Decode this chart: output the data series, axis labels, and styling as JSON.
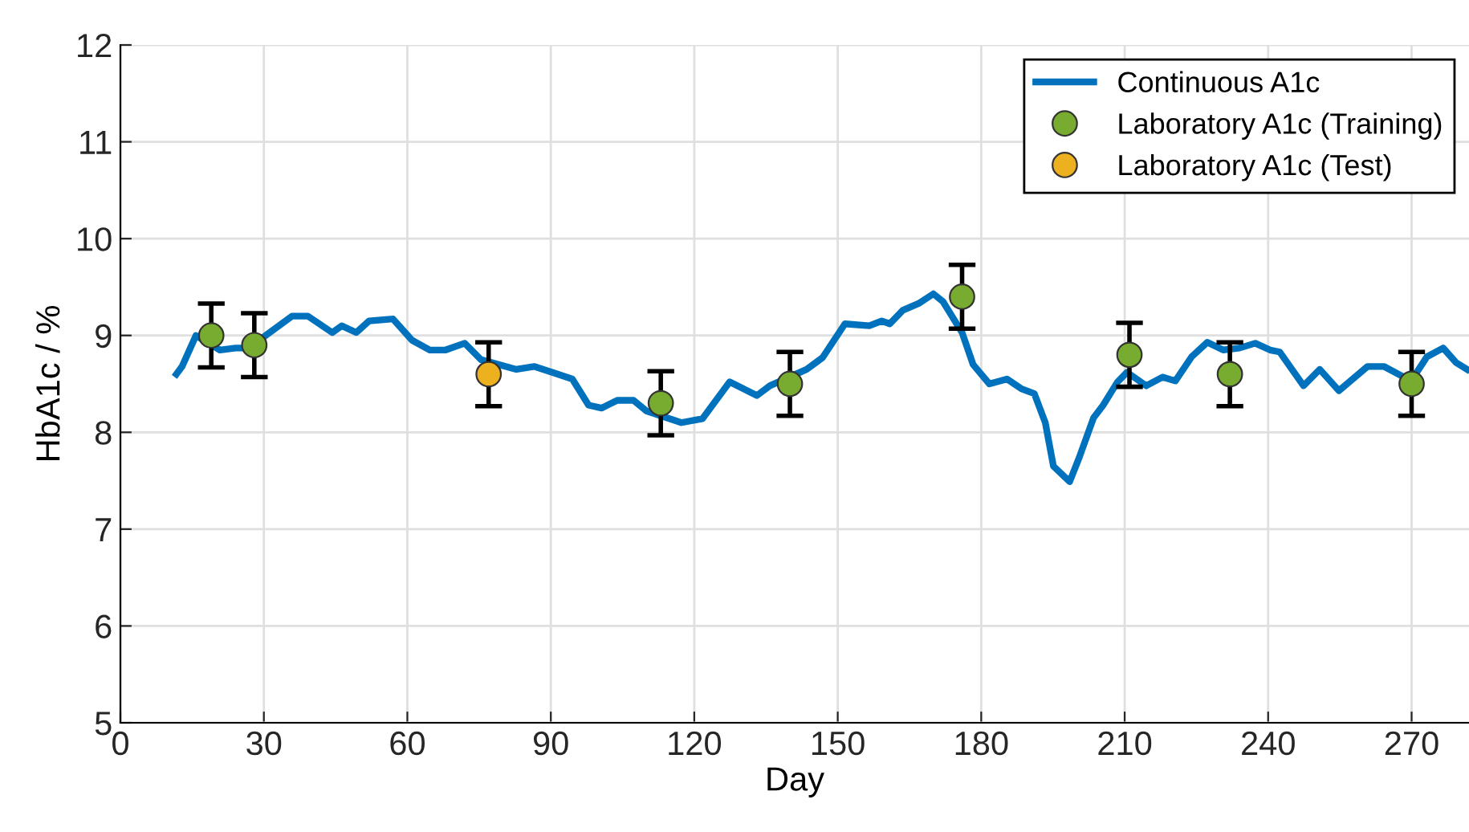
{
  "chart_data": {
    "type": "line",
    "xlabel": "Day",
    "ylabel": "HbA1c / %",
    "xlim": [
      0,
      282
    ],
    "ylim": [
      5,
      12
    ],
    "xticks": [
      0,
      30,
      60,
      90,
      120,
      150,
      180,
      210,
      240,
      270
    ],
    "yticks": [
      5,
      6,
      7,
      8,
      9,
      10,
      11,
      12
    ],
    "grid": true,
    "legend": "top right",
    "series": [
      {
        "name": "Continuous A1c",
        "color": "#0072bd",
        "marker": "none",
        "x": [
          11.7,
          12.9,
          15.8,
          17.4,
          20.8,
          24.1,
          26.8,
          31.2,
          35.9,
          39.2,
          44.3,
          46.3,
          49.3,
          52,
          57,
          61,
          64.7,
          68,
          72,
          75.4,
          82.8,
          86.5,
          91.5,
          94.5,
          97.9,
          100.6,
          103.9,
          107.3,
          110,
          117.3,
          121.7,
          127.4,
          133.1,
          135.8,
          143.5,
          146.8,
          151.5,
          156.6,
          159.2,
          160.9,
          163.6,
          166.9,
          170,
          172,
          176,
          178.3,
          181.7,
          185.4,
          188.4,
          191.1,
          193.4,
          195.1,
          198.5,
          200.5,
          203.5,
          205.5,
          208.5,
          210.5,
          214.5,
          217.9,
          220.6,
          224,
          227.3,
          230.6,
          234,
          237.3,
          240.4,
          242.4,
          247.4,
          250.8,
          254.8,
          260.8,
          264.2,
          269.9,
          273.2,
          276.6,
          279.3,
          281.6
        ],
        "values": [
          8.6,
          8.68,
          9.0,
          8.95,
          8.85,
          8.87,
          8.87,
          9.03,
          9.2,
          9.2,
          9.03,
          9.1,
          9.03,
          9.15,
          9.17,
          8.95,
          8.85,
          8.85,
          8.92,
          8.75,
          8.65,
          8.68,
          8.6,
          8.55,
          8.28,
          8.25,
          8.33,
          8.33,
          8.22,
          8.1,
          8.14,
          8.52,
          8.38,
          8.48,
          8.65,
          8.77,
          9.12,
          9.1,
          9.15,
          9.12,
          9.26,
          9.33,
          9.43,
          9.35,
          9.03,
          8.7,
          8.5,
          8.55,
          8.45,
          8.4,
          8.1,
          7.65,
          7.49,
          7.74,
          8.15,
          8.28,
          8.52,
          8.62,
          8.48,
          8.57,
          8.53,
          8.78,
          8.93,
          8.85,
          8.87,
          8.92,
          8.85,
          8.83,
          8.48,
          8.65,
          8.43,
          8.68,
          8.68,
          8.53,
          8.78,
          8.87,
          8.72,
          8.65
        ]
      },
      {
        "name": "Laboratory A1c (Training)",
        "type": "scatter",
        "color": "#77ac30",
        "marker": "circle",
        "x": [
          19,
          28,
          113,
          140,
          176,
          211,
          232,
          270
        ],
        "values": [
          9.0,
          8.9,
          8.3,
          8.5,
          9.4,
          8.8,
          8.6,
          8.5
        ],
        "errors": [
          0.33,
          0.33,
          0.33,
          0.33,
          0.33,
          0.33,
          0.33,
          0.33
        ]
      },
      {
        "name": "Laboratory A1c (Test)",
        "type": "scatter",
        "color": "#edb120",
        "marker": "circle",
        "x": [
          77
        ],
        "values": [
          8.6
        ],
        "errors": [
          0.33
        ]
      }
    ]
  }
}
